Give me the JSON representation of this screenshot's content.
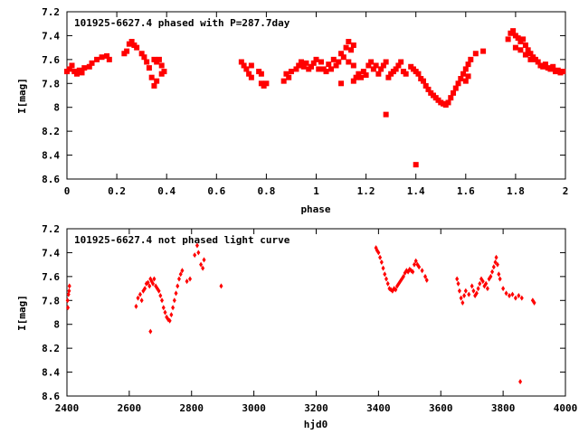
{
  "chart_data": [
    {
      "type": "scatter",
      "title": "101925-6627.4 phased with P=287.7day",
      "xlabel": "phase",
      "ylabel": "I[mag]",
      "xlim": [
        0,
        2
      ],
      "ylim": [
        7.2,
        8.6
      ],
      "y_inverted": true,
      "x_ticks": [
        "0",
        "0.2",
        "0.4",
        "0.6",
        "0.8",
        "1",
        "1.2",
        "1.4",
        "1.6",
        "1.8",
        "2"
      ],
      "y_ticks": [
        "7.2",
        "7.4",
        "7.6",
        "7.8",
        "8",
        "8.2",
        "8.4",
        "8.6"
      ],
      "marker": "filled-square",
      "color": "#ff0000",
      "series": [
        {
          "values": [
            [
              0.0,
              7.7
            ],
            [
              0.01,
              7.68
            ],
            [
              0.02,
              7.65
            ],
            [
              0.03,
              7.7
            ],
            [
              0.04,
              7.72
            ],
            [
              0.05,
              7.69
            ],
            [
              0.06,
              7.71
            ],
            [
              0.07,
              7.67
            ],
            [
              0.09,
              7.66
            ],
            [
              0.1,
              7.63
            ],
            [
              0.12,
              7.6
            ],
            [
              0.14,
              7.58
            ],
            [
              0.16,
              7.57
            ],
            [
              0.17,
              7.6
            ],
            [
              0.23,
              7.55
            ],
            [
              0.24,
              7.53
            ],
            [
              0.25,
              7.47
            ],
            [
              0.26,
              7.45
            ],
            [
              0.27,
              7.48
            ],
            [
              0.28,
              7.5
            ],
            [
              0.3,
              7.55
            ],
            [
              0.31,
              7.58
            ],
            [
              0.32,
              7.62
            ],
            [
              0.33,
              7.67
            ],
            [
              0.34,
              7.75
            ],
            [
              0.35,
              7.82
            ],
            [
              0.36,
              7.78
            ],
            [
              0.35,
              7.6
            ],
            [
              0.36,
              7.62
            ],
            [
              0.37,
              7.6
            ],
            [
              0.38,
              7.65
            ],
            [
              0.39,
              7.7
            ],
            [
              0.38,
              7.72
            ],
            [
              0.7,
              7.62
            ],
            [
              0.71,
              7.65
            ],
            [
              0.72,
              7.68
            ],
            [
              0.73,
              7.72
            ],
            [
              0.74,
              7.75
            ],
            [
              0.74,
              7.65
            ],
            [
              0.77,
              7.7
            ],
            [
              0.78,
              7.72
            ],
            [
              0.78,
              7.8
            ],
            [
              0.79,
              7.82
            ],
            [
              0.8,
              7.8
            ],
            [
              0.87,
              7.78
            ],
            [
              0.88,
              7.72
            ],
            [
              0.89,
              7.75
            ],
            [
              0.9,
              7.7
            ],
            [
              0.92,
              7.68
            ],
            [
              0.93,
              7.65
            ],
            [
              0.94,
              7.62
            ],
            [
              0.95,
              7.66
            ],
            [
              0.96,
              7.63
            ],
            [
              0.97,
              7.68
            ],
            [
              0.98,
              7.66
            ],
            [
              0.99,
              7.63
            ],
            [
              1.0,
              7.6
            ],
            [
              1.01,
              7.68
            ],
            [
              1.02,
              7.62
            ],
            [
              1.03,
              7.68
            ],
            [
              1.04,
              7.7
            ],
            [
              1.05,
              7.64
            ],
            [
              1.06,
              7.68
            ],
            [
              1.07,
              7.6
            ],
            [
              1.08,
              7.65
            ],
            [
              1.09,
              7.62
            ],
            [
              1.1,
              7.55
            ],
            [
              1.11,
              7.58
            ],
            [
              1.12,
              7.5
            ],
            [
              1.13,
              7.45
            ],
            [
              1.14,
              7.52
            ],
            [
              1.15,
              7.48
            ],
            [
              1.13,
              7.62
            ],
            [
              1.15,
              7.65
            ],
            [
              1.1,
              7.8
            ],
            [
              1.15,
              7.78
            ],
            [
              1.16,
              7.75
            ],
            [
              1.17,
              7.72
            ],
            [
              1.18,
              7.75
            ],
            [
              1.19,
              7.7
            ],
            [
              1.2,
              7.73
            ],
            [
              1.21,
              7.65
            ],
            [
              1.22,
              7.62
            ],
            [
              1.23,
              7.68
            ],
            [
              1.24,
              7.65
            ],
            [
              1.25,
              7.72
            ],
            [
              1.26,
              7.68
            ],
            [
              1.27,
              7.65
            ],
            [
              1.28,
              7.62
            ],
            [
              1.29,
              7.75
            ],
            [
              1.3,
              7.72
            ],
            [
              1.31,
              7.7
            ],
            [
              1.32,
              7.68
            ],
            [
              1.33,
              7.65
            ],
            [
              1.34,
              7.62
            ],
            [
              1.35,
              7.7
            ],
            [
              1.36,
              7.72
            ],
            [
              1.28,
              8.06
            ],
            [
              1.4,
              8.48
            ],
            [
              1.38,
              7.66
            ],
            [
              1.39,
              7.68
            ],
            [
              1.4,
              7.7
            ],
            [
              1.41,
              7.72
            ],
            [
              1.42,
              7.76
            ],
            [
              1.43,
              7.78
            ],
            [
              1.44,
              7.82
            ],
            [
              1.45,
              7.85
            ],
            [
              1.46,
              7.88
            ],
            [
              1.47,
              7.9
            ],
            [
              1.48,
              7.92
            ],
            [
              1.49,
              7.94
            ],
            [
              1.5,
              7.96
            ],
            [
              1.51,
              7.97
            ],
            [
              1.52,
              7.98
            ],
            [
              1.53,
              7.96
            ],
            [
              1.54,
              7.92
            ],
            [
              1.55,
              7.88
            ],
            [
              1.56,
              7.84
            ],
            [
              1.57,
              7.8
            ],
            [
              1.58,
              7.76
            ],
            [
              1.59,
              7.72
            ],
            [
              1.6,
              7.68
            ],
            [
              1.61,
              7.64
            ],
            [
              1.62,
              7.6
            ],
            [
              1.64,
              7.55
            ],
            [
              1.67,
              7.53
            ],
            [
              1.6,
              7.78
            ],
            [
              1.61,
              7.74
            ],
            [
              1.77,
              7.43
            ],
            [
              1.78,
              7.38
            ],
            [
              1.79,
              7.36
            ],
            [
              1.8,
              7.4
            ],
            [
              1.81,
              7.42
            ],
            [
              1.82,
              7.45
            ],
            [
              1.83,
              7.43
            ],
            [
              1.84,
              7.48
            ],
            [
              1.85,
              7.52
            ],
            [
              1.86,
              7.55
            ],
            [
              1.87,
              7.58
            ],
            [
              1.88,
              7.6
            ],
            [
              1.89,
              7.62
            ],
            [
              1.9,
              7.65
            ],
            [
              1.91,
              7.66
            ],
            [
              1.92,
              7.64
            ],
            [
              1.93,
              7.67
            ],
            [
              1.94,
              7.68
            ],
            [
              1.95,
              7.66
            ],
            [
              1.96,
              7.7
            ],
            [
              1.97,
              7.69
            ],
            [
              1.98,
              7.71
            ],
            [
              1.99,
              7.7
            ],
            [
              1.8,
              7.5
            ],
            [
              1.82,
              7.52
            ],
            [
              1.84,
              7.56
            ],
            [
              1.86,
              7.6
            ]
          ]
        }
      ]
    },
    {
      "type": "scatter",
      "title": "101925-6627.4 not phased light curve",
      "xlabel": "hjd0",
      "ylabel": "I[mag]",
      "xlim": [
        2400,
        4000
      ],
      "ylim": [
        7.2,
        8.6
      ],
      "y_inverted": true,
      "x_ticks": [
        "2400",
        "2600",
        "2800",
        "3000",
        "3200",
        "3400",
        "3600",
        "3800",
        "4000"
      ],
      "y_ticks": [
        "7.2",
        "7.4",
        "7.6",
        "7.8",
        "8",
        "8.2",
        "8.4",
        "8.6"
      ],
      "marker": "small-diamond",
      "color": "#ff0000",
      "series": [
        {
          "values": [
            [
              2402,
              7.8
            ],
            [
              2403,
              7.86
            ],
            [
              2405,
              7.75
            ],
            [
              2407,
              7.72
            ],
            [
              2408,
              7.68
            ],
            [
              2622,
              7.85
            ],
            [
              2628,
              7.78
            ],
            [
              2635,
              7.75
            ],
            [
              2640,
              7.8
            ],
            [
              2645,
              7.72
            ],
            [
              2650,
              7.7
            ],
            [
              2655,
              7.66
            ],
            [
              2660,
              7.65
            ],
            [
              2665,
              7.68
            ],
            [
              2668,
              7.62
            ],
            [
              2672,
              7.64
            ],
            [
              2676,
              7.66
            ],
            [
              2680,
              7.62
            ],
            [
              2685,
              7.68
            ],
            [
              2690,
              7.7
            ],
            [
              2695,
              7.72
            ],
            [
              2700,
              7.76
            ],
            [
              2705,
              7.8
            ],
            [
              2710,
              7.86
            ],
            [
              2715,
              7.9
            ],
            [
              2720,
              7.94
            ],
            [
              2725,
              7.96
            ],
            [
              2730,
              7.97
            ],
            [
              2735,
              7.92
            ],
            [
              2740,
              7.86
            ],
            [
              2745,
              7.8
            ],
            [
              2750,
              7.74
            ],
            [
              2755,
              7.68
            ],
            [
              2760,
              7.62
            ],
            [
              2765,
              7.58
            ],
            [
              2770,
              7.55
            ],
            [
              2668,
              8.06
            ],
            [
              2785,
              7.64
            ],
            [
              2795,
              7.62
            ],
            [
              2810,
              7.42
            ],
            [
              2818,
              7.34
            ],
            [
              2822,
              7.4
            ],
            [
              2830,
              7.5
            ],
            [
              2836,
              7.53
            ],
            [
              2840,
              7.46
            ],
            [
              2895,
              7.68
            ],
            [
              3392,
              7.36
            ],
            [
              3395,
              7.38
            ],
            [
              3400,
              7.4
            ],
            [
              3405,
              7.44
            ],
            [
              3410,
              7.48
            ],
            [
              3415,
              7.53
            ],
            [
              3420,
              7.58
            ],
            [
              3425,
              7.62
            ],
            [
              3430,
              7.66
            ],
            [
              3435,
              7.7
            ],
            [
              3440,
              7.71
            ],
            [
              3445,
              7.72
            ],
            [
              3450,
              7.7
            ],
            [
              3455,
              7.71
            ],
            [
              3460,
              7.68
            ],
            [
              3465,
              7.66
            ],
            [
              3470,
              7.64
            ],
            [
              3475,
              7.62
            ],
            [
              3480,
              7.6
            ],
            [
              3485,
              7.57
            ],
            [
              3490,
              7.55
            ],
            [
              3495,
              7.56
            ],
            [
              3500,
              7.54
            ],
            [
              3505,
              7.55
            ],
            [
              3510,
              7.56
            ],
            [
              3515,
              7.5
            ],
            [
              3520,
              7.47
            ],
            [
              3525,
              7.5
            ],
            [
              3530,
              7.52
            ],
            [
              3540,
              7.55
            ],
            [
              3550,
              7.6
            ],
            [
              3555,
              7.63
            ],
            [
              3652,
              7.62
            ],
            [
              3656,
              7.66
            ],
            [
              3660,
              7.72
            ],
            [
              3665,
              7.78
            ],
            [
              3670,
              7.82
            ],
            [
              3675,
              7.76
            ],
            [
              3680,
              7.72
            ],
            [
              3690,
              7.75
            ],
            [
              3700,
              7.68
            ],
            [
              3705,
              7.72
            ],
            [
              3710,
              7.76
            ],
            [
              3715,
              7.74
            ],
            [
              3720,
              7.7
            ],
            [
              3725,
              7.66
            ],
            [
              3730,
              7.62
            ],
            [
              3735,
              7.64
            ],
            [
              3740,
              7.68
            ],
            [
              3745,
              7.66
            ],
            [
              3750,
              7.7
            ],
            [
              3755,
              7.62
            ],
            [
              3760,
              7.6
            ],
            [
              3765,
              7.56
            ],
            [
              3770,
              7.52
            ],
            [
              3775,
              7.48
            ],
            [
              3778,
              7.44
            ],
            [
              3782,
              7.5
            ],
            [
              3786,
              7.58
            ],
            [
              3790,
              7.62
            ],
            [
              3800,
              7.7
            ],
            [
              3810,
              7.74
            ],
            [
              3820,
              7.76
            ],
            [
              3830,
              7.75
            ],
            [
              3840,
              7.78
            ],
            [
              3850,
              7.76
            ],
            [
              3860,
              7.78
            ],
            [
              3855,
              8.48
            ],
            [
              3895,
              7.8
            ],
            [
              3900,
              7.82
            ]
          ]
        }
      ]
    }
  ]
}
